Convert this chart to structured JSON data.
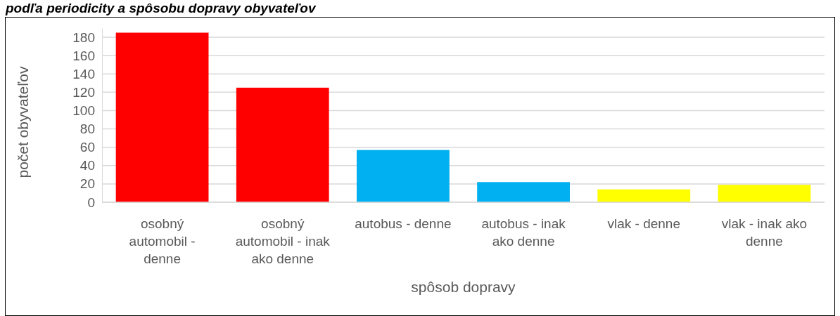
{
  "chart_data": {
    "type": "bar",
    "title": "podľa periodicity a spôsobu dopravy obyvateľov",
    "xlabel": "spôsob dopravy",
    "ylabel": "počet obyvateľov",
    "categories": [
      "osobný automobil - denne",
      "osobný automobil - inak ako denne",
      "autobus - denne",
      "autobus - inak ako denne",
      "vlak - denne",
      "vlak - inak ako denne"
    ],
    "values": [
      185,
      125,
      57,
      22,
      14,
      19
    ],
    "colors": [
      "#ff0000",
      "#ff0000",
      "#00b0f0",
      "#00b0f0",
      "#ffff00",
      "#ffff00"
    ],
    "ylim": [
      0,
      190
    ],
    "yticks": [
      0,
      20,
      40,
      60,
      80,
      100,
      120,
      140,
      160,
      180
    ],
    "grid": "y"
  }
}
